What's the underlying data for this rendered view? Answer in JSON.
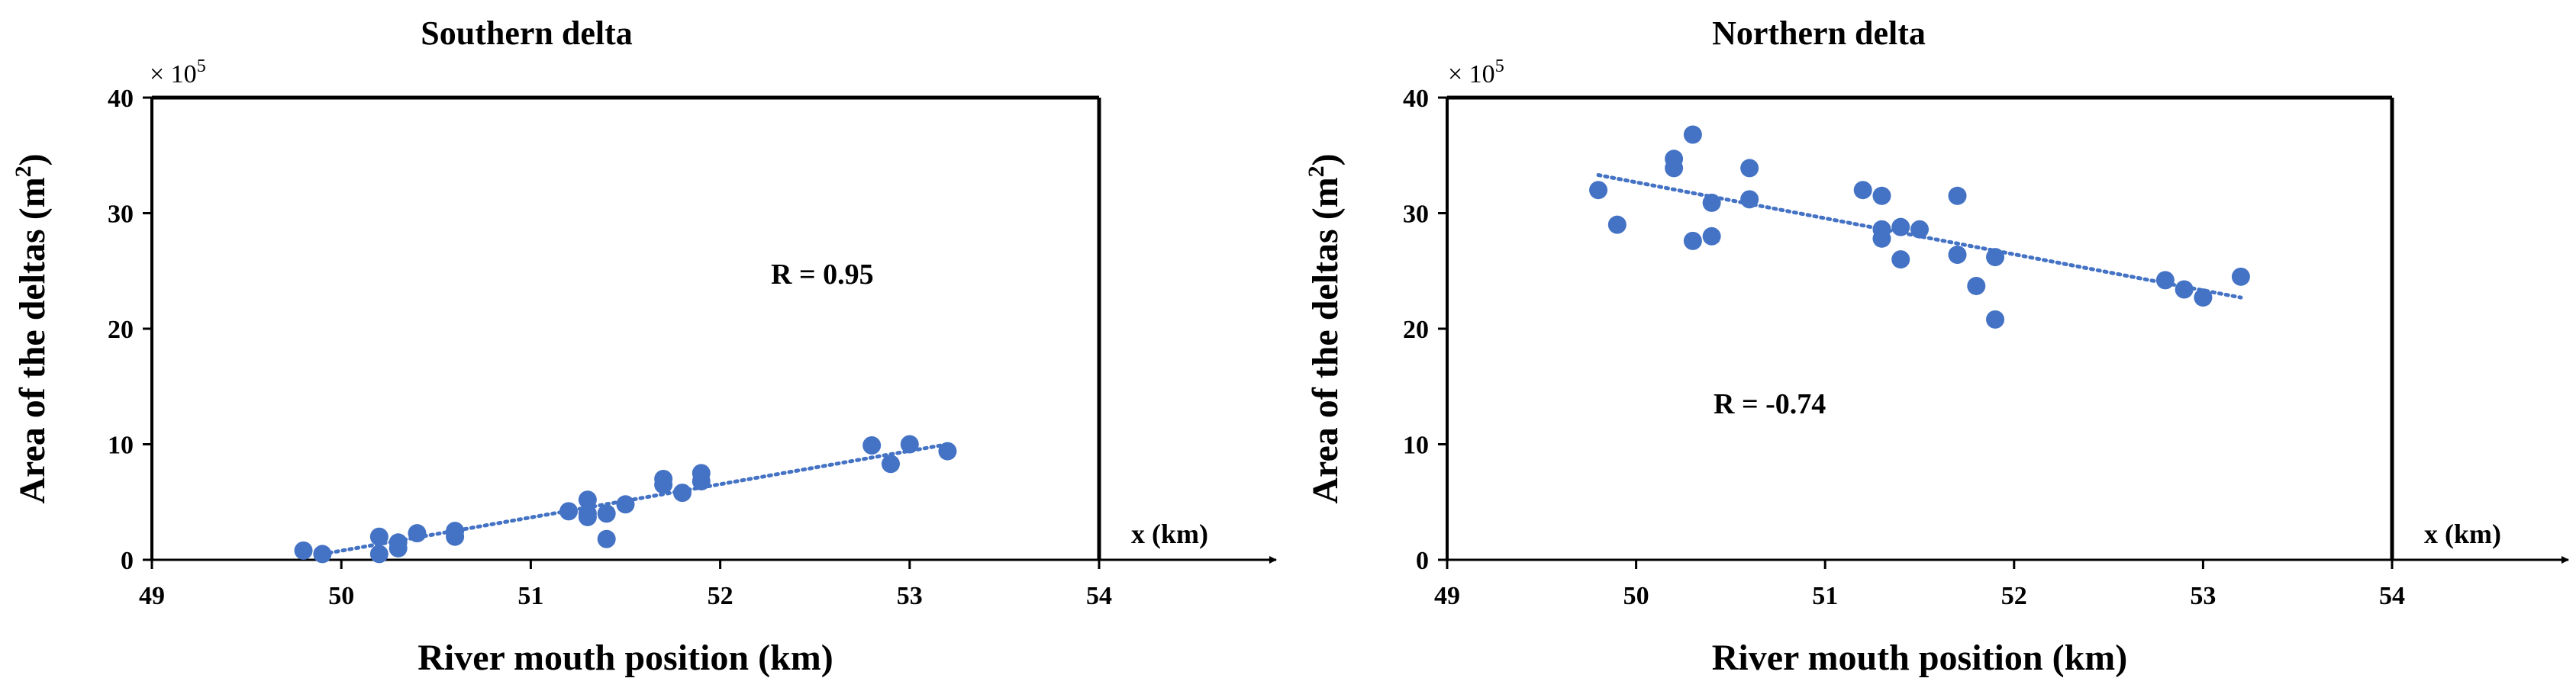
{
  "chart_data": [
    {
      "type": "scatter",
      "title": "Southern delta",
      "xlabel": "River mouth position (km)",
      "ylabel_main": "Area of the deltas (m",
      "ylabel_sup": "2",
      "ylabel_tail": ")",
      "y_multiplier_base": "× 10",
      "y_multiplier_exp": "5",
      "x_axis_tag": "x (km)",
      "annotation": "R = 0.95",
      "xlim": [
        49,
        54
      ],
      "ylim": [
        0,
        40
      ],
      "xticks": [
        "49",
        "50",
        "51",
        "52",
        "53",
        "54"
      ],
      "yticks": [
        "0",
        "10",
        "20",
        "30",
        "40"
      ],
      "grid": false,
      "marker_color": "#4472c4",
      "trendline": {
        "style": "dotted",
        "x": [
          49.9,
          53.2
        ],
        "y": [
          0.5,
          10.0
        ]
      },
      "x": [
        49.8,
        49.9,
        50.2,
        50.2,
        50.3,
        50.3,
        50.4,
        50.6,
        50.6,
        51.2,
        51.3,
        51.3,
        51.3,
        51.4,
        51.4,
        51.5,
        51.7,
        51.7,
        51.8,
        51.9,
        51.9,
        52.8,
        52.9,
        53.0,
        53.2
      ],
      "y": [
        0.8,
        0.5,
        2.0,
        0.5,
        1.5,
        1.0,
        2.3,
        2.5,
        2.0,
        4.2,
        5.2,
        4.0,
        3.7,
        4.0,
        1.8,
        4.8,
        7.0,
        6.5,
        5.8,
        7.5,
        6.8,
        9.9,
        8.3,
        10.0,
        9.4
      ]
    },
    {
      "type": "scatter",
      "title": "Northern delta",
      "xlabel": "River mouth position (km)",
      "ylabel_main": "Area of the deltas (m",
      "ylabel_sup": "2",
      "ylabel_tail": ")",
      "y_multiplier_base": "× 10",
      "y_multiplier_exp": "5",
      "x_axis_tag": "x (km)",
      "annotation": "R = -0.74",
      "xlim": [
        49,
        54
      ],
      "ylim": [
        0,
        40
      ],
      "xticks": [
        "49",
        "50",
        "51",
        "52",
        "53",
        "54"
      ],
      "yticks": [
        "0",
        "10",
        "20",
        "30",
        "40"
      ],
      "grid": false,
      "marker_color": "#4472c4",
      "trendline": {
        "style": "dotted",
        "x": [
          49.8,
          53.2
        ],
        "y": [
          33.3,
          22.7
        ]
      },
      "x": [
        49.8,
        49.9,
        50.2,
        50.2,
        50.3,
        50.3,
        50.4,
        50.4,
        50.6,
        50.6,
        51.2,
        51.3,
        51.3,
        51.3,
        51.4,
        51.4,
        51.5,
        51.7,
        51.7,
        51.8,
        51.9,
        51.9,
        52.8,
        52.9,
        53.0,
        53.2
      ],
      "y": [
        32.0,
        29.0,
        34.7,
        33.9,
        36.8,
        27.6,
        30.9,
        28.0,
        33.9,
        31.2,
        32.0,
        31.5,
        28.6,
        27.8,
        28.8,
        26.0,
        28.6,
        31.5,
        26.4,
        23.7,
        26.2,
        20.8,
        24.2,
        23.4,
        22.7,
        24.5
      ]
    }
  ]
}
